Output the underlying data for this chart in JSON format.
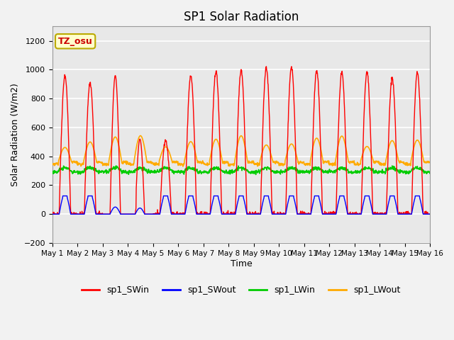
{
  "title": "SP1 Solar Radiation",
  "xlabel": "Time",
  "ylabel": "Solar Radiation (W/m2)",
  "ylim": [
    -200,
    1300
  ],
  "yticks": [
    -200,
    0,
    200,
    400,
    600,
    800,
    1000,
    1200
  ],
  "xlim_days": [
    0,
    15
  ],
  "annotation_text": "TZ_osu",
  "annotation_color": "#cc0000",
  "annotation_bg": "#ffffcc",
  "annotation_border": "#bbaa00",
  "series_colors": {
    "sp1_SWin": "#ff0000",
    "sp1_SWout": "#0000ff",
    "sp1_LWin": "#00cc00",
    "sp1_LWout": "#ffaa00"
  },
  "background_color": "#e8e8e8",
  "grid_color": "#ffffff",
  "days": 15,
  "SWin_peaks": [
    960,
    910,
    960,
    520,
    510,
    960,
    990,
    1000,
    1010,
    1020,
    990,
    980,
    980,
    940,
    980
  ],
  "SWout_peak": 140,
  "LWin_base": 300,
  "LWout_base": 370,
  "figsize": [
    6.4,
    4.8
  ],
  "dpi": 100
}
